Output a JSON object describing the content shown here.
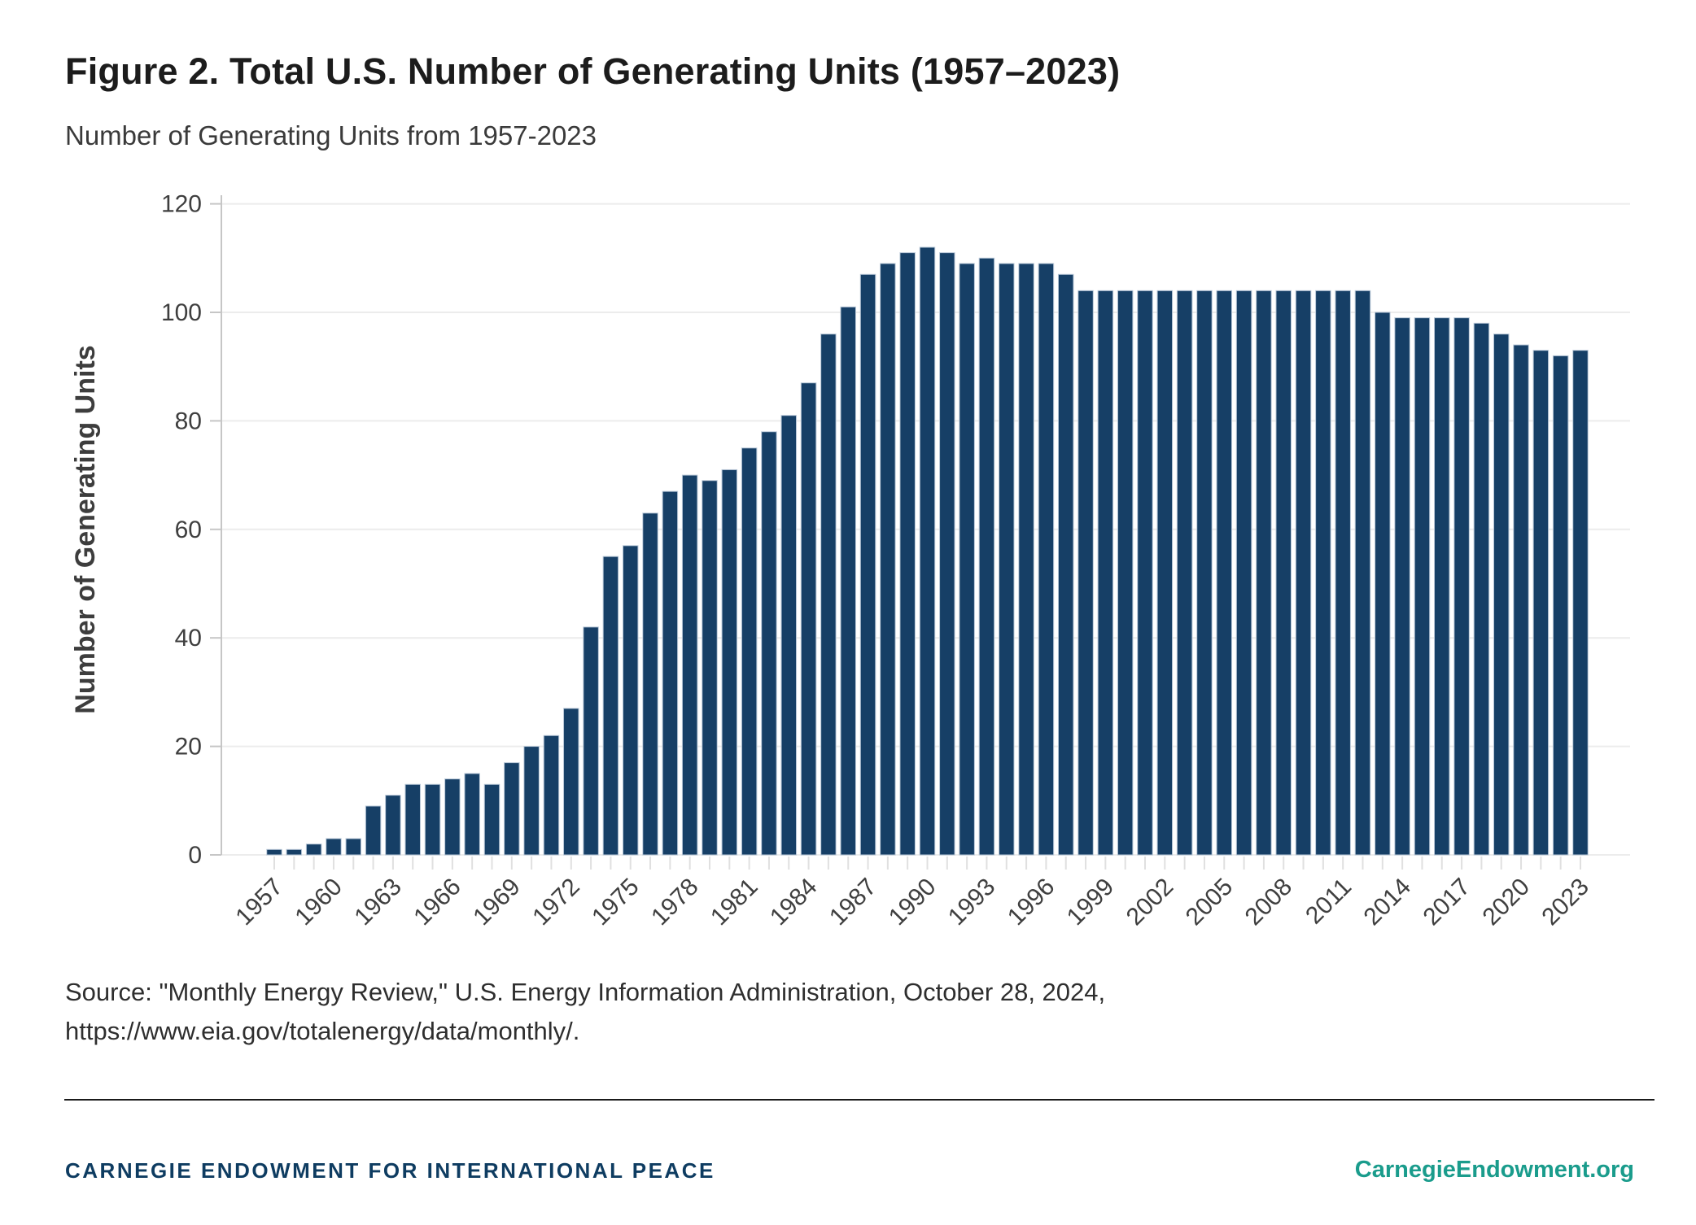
{
  "figure": {
    "title": "Figure 2. Total U.S. Number of Generating Units (1957–2023)",
    "subtitle": "Number of Generating Units from 1957-2023"
  },
  "chart_data": {
    "type": "bar",
    "title": "Figure 2. Total U.S. Number of Generating Units (1957–2023)",
    "subtitle": "Number of Generating Units from 1957-2023",
    "xlabel": "",
    "ylabel": "Number of Generating Units",
    "ylim": [
      0,
      120
    ],
    "yticks": [
      0,
      20,
      40,
      60,
      80,
      100,
      120
    ],
    "grid": "horizontal",
    "legend": "none",
    "x_tick_labels": [
      "1957",
      "1960",
      "1963",
      "1966",
      "1969",
      "1972",
      "1975",
      "1978",
      "1981",
      "1984",
      "1987",
      "1990",
      "1993",
      "1996",
      "1999",
      "2002",
      "2005",
      "2008",
      "2011",
      "2014",
      "2017",
      "2020",
      "2023"
    ],
    "categories": [
      1957,
      1958,
      1959,
      1960,
      1961,
      1962,
      1963,
      1964,
      1965,
      1966,
      1967,
      1968,
      1969,
      1970,
      1971,
      1972,
      1973,
      1974,
      1975,
      1976,
      1977,
      1978,
      1979,
      1980,
      1981,
      1982,
      1983,
      1984,
      1985,
      1986,
      1987,
      1988,
      1989,
      1990,
      1991,
      1992,
      1993,
      1994,
      1995,
      1996,
      1997,
      1998,
      1999,
      2000,
      2001,
      2002,
      2003,
      2004,
      2005,
      2006,
      2007,
      2008,
      2009,
      2010,
      2011,
      2012,
      2013,
      2014,
      2015,
      2016,
      2017,
      2018,
      2019,
      2020,
      2021,
      2022,
      2023
    ],
    "values": [
      1,
      1,
      2,
      3,
      3,
      9,
      11,
      13,
      13,
      14,
      15,
      13,
      17,
      20,
      22,
      27,
      42,
      55,
      57,
      63,
      67,
      70,
      69,
      71,
      75,
      78,
      81,
      87,
      96,
      101,
      107,
      109,
      111,
      112,
      111,
      109,
      110,
      109,
      109,
      109,
      107,
      104,
      104,
      104,
      104,
      104,
      104,
      104,
      104,
      104,
      104,
      104,
      104,
      104,
      104,
      104,
      100,
      99,
      99,
      99,
      99,
      98,
      96,
      94,
      93,
      92,
      93
    ],
    "colors": {
      "bar_fill": "#163f66",
      "bar_stroke": "#b9c8d8",
      "gridline": "#ececec",
      "axis_line": "#c6c6c6",
      "tick_mark": "#e0e0e0",
      "tick_text": "#3f3f3f",
      "axis_title_text": "#3d3d3d"
    }
  },
  "source": {
    "line1": "Source: \"Monthly Energy Review,\" U.S. Energy Information Administration, October 28, 2024,",
    "line2": "https://www.eia.gov/totalenergy/data/monthly/."
  },
  "footer": {
    "left": "CARNEGIE ENDOWMENT FOR INTERNATIONAL PEACE",
    "right": "CarnegieEndowment.org",
    "left_color": "#0e3c61",
    "right_color": "#1a9c8c"
  }
}
